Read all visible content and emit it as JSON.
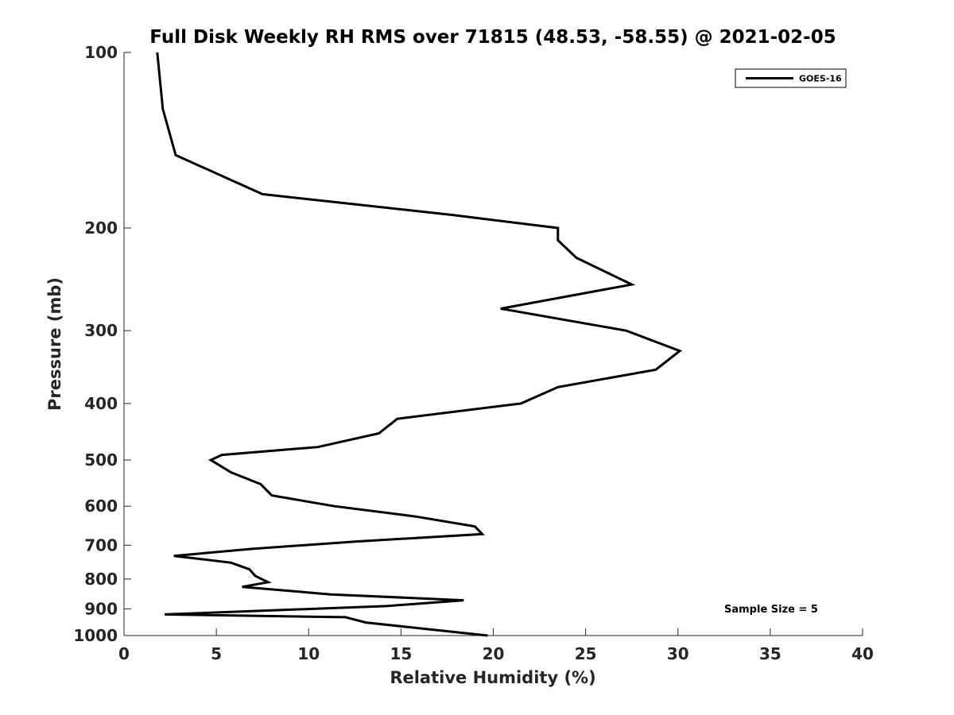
{
  "chart_data": {
    "type": "line",
    "title": "Full Disk Weekly RH RMS over 71815 (48.53, -58.55) @ 2021-02-05",
    "xlabel": "Relative Humidity (%)",
    "ylabel": "Pressure (mb)",
    "xlim": [
      0,
      40
    ],
    "ylim": [
      100,
      1000
    ],
    "y_scale": "log",
    "y_reversed": true,
    "x_ticks": [
      0,
      5,
      10,
      15,
      20,
      25,
      30,
      35,
      40
    ],
    "y_ticks": [
      100,
      200,
      300,
      400,
      500,
      600,
      700,
      800,
      900,
      1000
    ],
    "grid": false,
    "legend_position": "top-right",
    "line_color": "#000000",
    "series": [
      {
        "name": "GOES-16",
        "points": [
          [
            1.8,
            100
          ],
          [
            2.1,
            125
          ],
          [
            2.8,
            150
          ],
          [
            7.5,
            175
          ],
          [
            17.8,
            190
          ],
          [
            23.5,
            200
          ],
          [
            23.5,
            210
          ],
          [
            24.5,
            225
          ],
          [
            27.5,
            250
          ],
          [
            20.4,
            275
          ],
          [
            27.2,
            300
          ],
          [
            30.1,
            325
          ],
          [
            28.8,
            350
          ],
          [
            23.5,
            375
          ],
          [
            21.5,
            400
          ],
          [
            14.8,
            425
          ],
          [
            13.8,
            450
          ],
          [
            10.5,
            475
          ],
          [
            5.3,
            490
          ],
          [
            4.7,
            500
          ],
          [
            5.8,
            525
          ],
          [
            7.4,
            550
          ],
          [
            8.0,
            575
          ],
          [
            11.4,
            600
          ],
          [
            15.8,
            625
          ],
          [
            19.0,
            650
          ],
          [
            19.4,
            670
          ],
          [
            12.5,
            690
          ],
          [
            7.0,
            710
          ],
          [
            2.7,
            730
          ],
          [
            5.8,
            750
          ],
          [
            6.8,
            770
          ],
          [
            7.1,
            790
          ],
          [
            7.8,
            810
          ],
          [
            6.4,
            825
          ],
          [
            11.2,
            850
          ],
          [
            18.4,
            870
          ],
          [
            14.2,
            890
          ],
          [
            2.2,
            920
          ],
          [
            12.0,
            930
          ],
          [
            13.1,
            950
          ],
          [
            19.7,
            1000
          ]
        ]
      }
    ],
    "annotations": [
      "Sample Size = 5"
    ]
  }
}
